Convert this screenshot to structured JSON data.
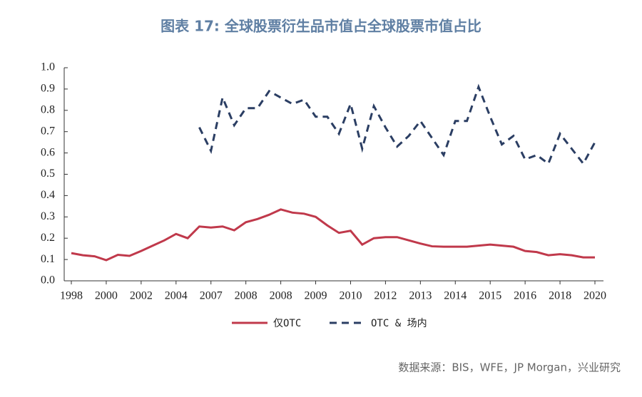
{
  "chart_data": {
    "type": "line",
    "title": "图表 17: 全球股票衍生品市值占全球股票市值占比",
    "source": "数据来源：BIS，WFE，JP Morgan，兴业研究",
    "categories": [
      "1998",
      null,
      null,
      "2000",
      null,
      null,
      "2002",
      null,
      null,
      "2004",
      null,
      null,
      "2007",
      null,
      null,
      "2008",
      null,
      null,
      "2008",
      null,
      null,
      "2009",
      null,
      null,
      "2010",
      null,
      null,
      "2012",
      null,
      null,
      "2013",
      null,
      null,
      "2014",
      null,
      null,
      "2015",
      null,
      null,
      "2016",
      null,
      null,
      "2018",
      null,
      null,
      "2020"
    ],
    "series": [
      {
        "name": "仅OTC",
        "color": "#c0394b",
        "dash": false,
        "values": [
          0.13,
          0.12,
          0.115,
          0.097,
          0.122,
          0.117,
          0.14,
          0.165,
          0.19,
          0.22,
          0.2,
          0.255,
          0.25,
          0.255,
          0.237,
          0.275,
          0.29,
          0.31,
          0.335,
          0.32,
          0.315,
          0.3,
          0.26,
          0.225,
          0.235,
          0.17,
          0.2,
          0.205,
          0.205,
          0.19,
          0.175,
          0.162,
          0.16,
          0.16,
          0.16,
          0.165,
          0.17,
          0.165,
          0.16,
          0.14,
          0.135,
          0.12,
          0.125,
          0.12,
          0.11,
          0.11
        ]
      },
      {
        "name": "OTC & 场内",
        "color": "#2b3e63",
        "dash": true,
        "values": [
          null,
          null,
          null,
          null,
          null,
          null,
          null,
          null,
          null,
          null,
          null,
          0.72,
          0.61,
          0.86,
          0.73,
          0.81,
          0.81,
          0.89,
          0.86,
          0.83,
          0.85,
          0.77,
          0.77,
          0.69,
          0.83,
          0.62,
          0.82,
          0.72,
          0.63,
          0.68,
          0.75,
          0.67,
          0.59,
          0.75,
          0.75,
          0.91,
          0.77,
          0.64,
          0.68,
          0.57,
          0.59,
          0.55,
          0.69,
          0.62,
          0.55,
          0.65
        ]
      }
    ],
    "ylim": [
      0,
      1
    ],
    "yticks": [
      {
        "value": 0,
        "label": "0.0"
      },
      0.1,
      0.2,
      0.3,
      0.4,
      0.5,
      0.6,
      0.7,
      0.8,
      0.9,
      {
        "value": 1,
        "label": "1.0"
      }
    ]
  }
}
